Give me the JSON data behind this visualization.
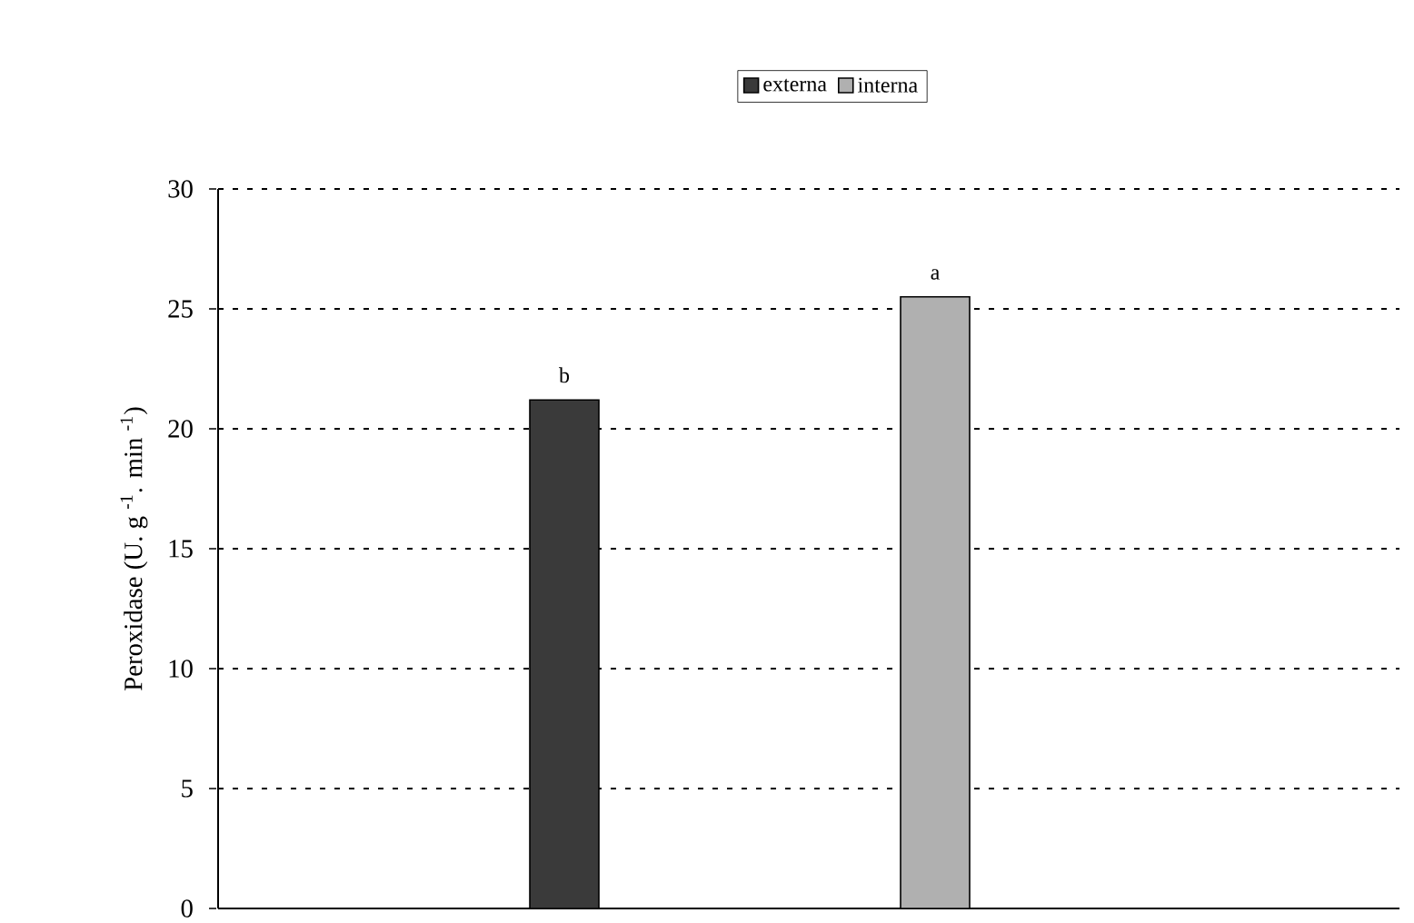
{
  "chart_data": {
    "type": "bar",
    "ylabel": "Peroxidase (U. g $^{-1}$. min $^{-1}$)",
    "categories": [
      null
    ],
    "series": [
      {
        "name": "externa",
        "color": "#3a3a3a",
        "values": [
          21.2
        ]
      },
      {
        "name": "interna",
        "color": "#b0b0b0",
        "values": [
          25.5
        ]
      }
    ],
    "ylim": [
      0,
      30
    ],
    "yticks": [
      0,
      5,
      10,
      15,
      20,
      25,
      30
    ],
    "grid": "y",
    "legend": "top",
    "annotations": [
      {
        "text": "b",
        "y": 21.2
      },
      {
        "text": "a",
        "y": 25.5
      }
    ]
  }
}
